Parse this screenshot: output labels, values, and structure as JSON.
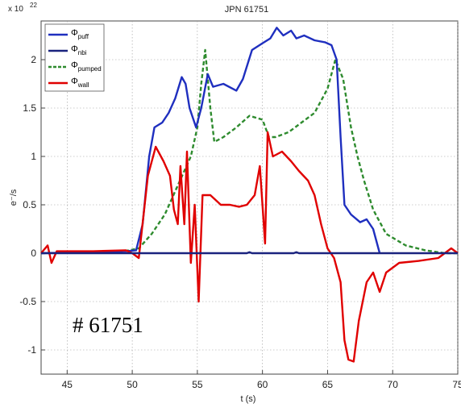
{
  "chart_data": {
    "type": "line",
    "title": "JPN 61751",
    "xlabel": "t (s)",
    "ylabel": "e⁻/s",
    "y_exponent": "x 10",
    "y_exponent_power": "22",
    "annotation": "# 61751",
    "xlim": [
      43,
      75
    ],
    "ylim": [
      -1.25,
      2.4
    ],
    "x_ticks": [
      45,
      50,
      55,
      60,
      65,
      70,
      75
    ],
    "x_tick_labels": [
      "45",
      "50",
      "55",
      "60",
      "65",
      "70",
      "75"
    ],
    "y_ticks": [
      -1,
      -0.5,
      0,
      0.5,
      1,
      1.5,
      2
    ],
    "y_tick_labels": [
      "-1",
      "-0.5",
      "0",
      "0.5",
      "1",
      "1.5",
      "2"
    ],
    "grid": true,
    "legend_position": "top-left",
    "series": [
      {
        "name": "puff",
        "color": "#1f2fbf",
        "style": "solid",
        "points": [
          [
            43,
            0.0
          ],
          [
            47,
            0.01
          ],
          [
            49.5,
            0.02
          ],
          [
            50.3,
            0.03
          ],
          [
            50.8,
            0.3
          ],
          [
            51.3,
            1.0
          ],
          [
            51.7,
            1.3
          ],
          [
            52.3,
            1.35
          ],
          [
            52.8,
            1.45
          ],
          [
            53.3,
            1.6
          ],
          [
            53.8,
            1.82
          ],
          [
            54.1,
            1.75
          ],
          [
            54.4,
            1.5
          ],
          [
            54.9,
            1.3
          ],
          [
            55.3,
            1.5
          ],
          [
            55.8,
            1.85
          ],
          [
            56.2,
            1.72
          ],
          [
            57,
            1.75
          ],
          [
            58,
            1.68
          ],
          [
            58.5,
            1.8
          ],
          [
            59.2,
            2.1
          ],
          [
            60,
            2.17
          ],
          [
            60.6,
            2.22
          ],
          [
            61.1,
            2.33
          ],
          [
            61.6,
            2.25
          ],
          [
            62.2,
            2.3
          ],
          [
            62.6,
            2.22
          ],
          [
            63.2,
            2.25
          ],
          [
            64,
            2.2
          ],
          [
            64.8,
            2.18
          ],
          [
            65.3,
            2.15
          ],
          [
            65.7,
            2.0
          ],
          [
            66.0,
            1.2
          ],
          [
            66.3,
            0.5
          ],
          [
            66.8,
            0.4
          ],
          [
            67.5,
            0.32
          ],
          [
            68,
            0.35
          ],
          [
            68.5,
            0.25
          ],
          [
            69.0,
            0.0
          ]
        ]
      },
      {
        "name": "nbi",
        "color": "#1a237e",
        "style": "solid",
        "points": [
          [
            43,
            0.0
          ],
          [
            50.5,
            0.0
          ],
          [
            58.8,
            0.0
          ],
          [
            59.0,
            0.01
          ],
          [
            59.2,
            0.0
          ],
          [
            62.4,
            0.0
          ],
          [
            62.6,
            0.01
          ],
          [
            62.8,
            0.0
          ],
          [
            75,
            0.0
          ]
        ]
      },
      {
        "name": "pumped",
        "color": "#2e8b2e",
        "style": "dashed",
        "points": [
          [
            43,
            0.0
          ],
          [
            49,
            0.01
          ],
          [
            50.5,
            0.05
          ],
          [
            51.5,
            0.2
          ],
          [
            52.5,
            0.4
          ],
          [
            53.5,
            0.7
          ],
          [
            54.5,
            1.0
          ],
          [
            55.0,
            1.3
          ],
          [
            55.3,
            1.75
          ],
          [
            55.6,
            2.1
          ],
          [
            56.0,
            1.5
          ],
          [
            56.3,
            1.15
          ],
          [
            57,
            1.2
          ],
          [
            58,
            1.3
          ],
          [
            59,
            1.42
          ],
          [
            60,
            1.38
          ],
          [
            60.5,
            1.2
          ],
          [
            61,
            1.2
          ],
          [
            62,
            1.25
          ],
          [
            63,
            1.35
          ],
          [
            64,
            1.45
          ],
          [
            65,
            1.7
          ],
          [
            65.6,
            2.0
          ],
          [
            66.2,
            1.8
          ],
          [
            66.8,
            1.3
          ],
          [
            67.3,
            1.0
          ],
          [
            67.8,
            0.75
          ],
          [
            68.5,
            0.45
          ],
          [
            69.5,
            0.2
          ],
          [
            71,
            0.08
          ],
          [
            72.5,
            0.03
          ],
          [
            74,
            0.0
          ],
          [
            75,
            0.0
          ]
        ]
      },
      {
        "name": "wall",
        "color": "#e00000",
        "style": "solid",
        "points": [
          [
            43,
            0.0
          ],
          [
            43.5,
            0.08
          ],
          [
            43.8,
            -0.1
          ],
          [
            44.2,
            0.02
          ],
          [
            47,
            0.02
          ],
          [
            49.5,
            0.03
          ],
          [
            50,
            0.0
          ],
          [
            50.5,
            -0.05
          ],
          [
            51.2,
            0.8
          ],
          [
            51.8,
            1.1
          ],
          [
            52.4,
            0.95
          ],
          [
            52.9,
            0.8
          ],
          [
            53.2,
            0.45
          ],
          [
            53.5,
            0.3
          ],
          [
            53.7,
            0.9
          ],
          [
            54.0,
            0.3
          ],
          [
            54.2,
            1.05
          ],
          [
            54.5,
            -0.1
          ],
          [
            54.8,
            0.5
          ],
          [
            55.1,
            -0.5
          ],
          [
            55.4,
            0.6
          ],
          [
            56,
            0.6
          ],
          [
            56.8,
            0.5
          ],
          [
            57.5,
            0.5
          ],
          [
            58.2,
            0.48
          ],
          [
            58.8,
            0.5
          ],
          [
            59.4,
            0.6
          ],
          [
            59.8,
            0.9
          ],
          [
            60.2,
            0.1
          ],
          [
            60.4,
            1.25
          ],
          [
            60.8,
            1.0
          ],
          [
            61.5,
            1.05
          ],
          [
            62.2,
            0.95
          ],
          [
            62.8,
            0.85
          ],
          [
            63.5,
            0.75
          ],
          [
            64,
            0.6
          ],
          [
            64.5,
            0.3
          ],
          [
            65.0,
            0.05
          ],
          [
            65.5,
            -0.05
          ],
          [
            66,
            -0.3
          ],
          [
            66.3,
            -0.9
          ],
          [
            66.6,
            -1.1
          ],
          [
            67.0,
            -1.12
          ],
          [
            67.4,
            -0.7
          ],
          [
            68,
            -0.3
          ],
          [
            68.5,
            -0.2
          ],
          [
            69,
            -0.4
          ],
          [
            69.5,
            -0.2
          ],
          [
            70.5,
            -0.1
          ],
          [
            72,
            -0.08
          ],
          [
            73.5,
            -0.05
          ],
          [
            74.5,
            0.05
          ],
          [
            75,
            0.0
          ]
        ]
      }
    ]
  }
}
